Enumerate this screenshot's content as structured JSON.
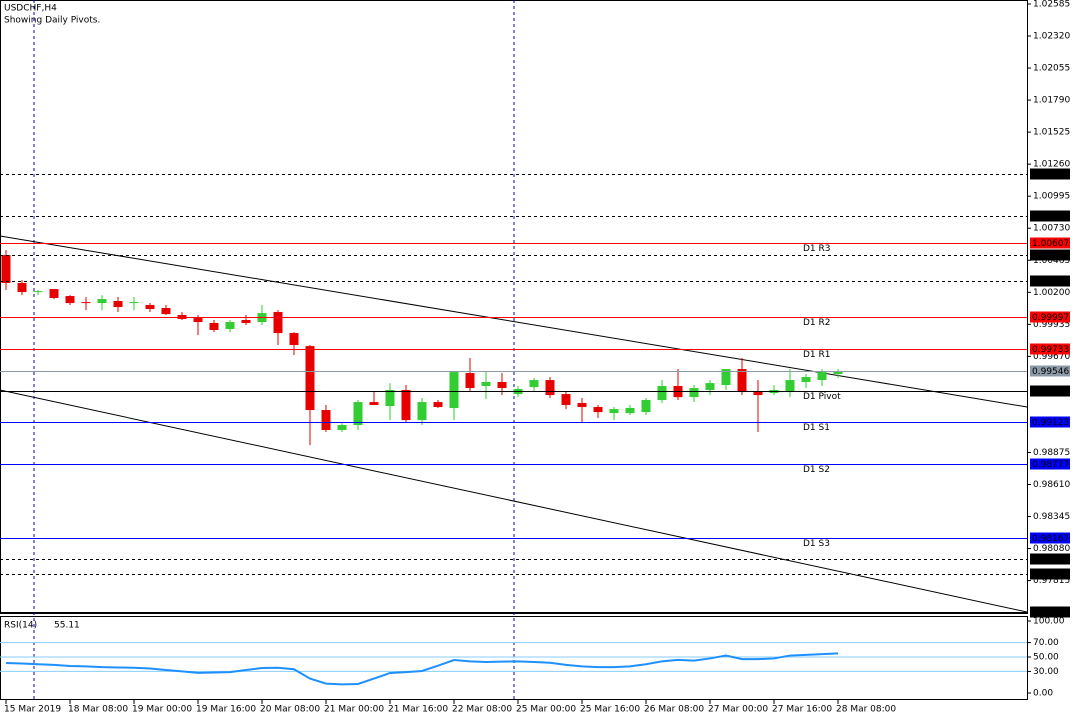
{
  "chart_data": {
    "type": "candlestick",
    "title": "USDCHF,H4",
    "subtitle": "Showing Daily Pivots.",
    "categories": [
      "15 Mar 2019",
      null,
      null,
      null,
      "18 Mar 08:00",
      null,
      null,
      null,
      "19 Mar 00:00",
      null,
      null,
      null,
      "19 Mar 16:00",
      null,
      null,
      null,
      "20 Mar 08:00",
      null,
      null,
      null,
      "21 Mar 00:00",
      null,
      null,
      null,
      "21 Mar 16:00",
      null,
      null,
      null,
      "22 Mar 08:00",
      null,
      null,
      null,
      "25 Mar 00:00",
      null,
      null,
      null,
      "25 Mar 16:00",
      null,
      null,
      null,
      "26 Mar 08:00",
      null,
      null,
      null,
      "27 Mar 00:00",
      null,
      null,
      null,
      "27 Mar 16:00",
      null,
      null,
      null,
      "28 Mar 08:00"
    ],
    "open": [
      1.00508,
      1.00277,
      1.00202,
      1.00227,
      1.00169,
      1.00119,
      1.00111,
      1.00128,
      1.00111,
      1.00095,
      1.0007,
      1.00012,
      0.99987,
      0.99946,
      0.99896,
      0.99971,
      0.99954,
      1.00037,
      0.99863,
      0.99755,
      0.99226,
      0.99061,
      0.99102,
      0.99292,
      0.99259,
      0.99392,
      0.99143,
      0.99292,
      0.99243,
      0.99532,
      0.99425,
      0.99458,
      0.99358,
      0.99416,
      0.99474,
      0.99358,
      0.99284,
      0.99251,
      0.99201,
      0.99201,
      0.99209,
      0.99309,
      0.99425,
      0.99333,
      0.99392,
      0.99433,
      0.99565,
      0.99375,
      0.99367,
      0.99375,
      0.99458,
      0.99474,
      0.99524
    ],
    "high": [
      1.0055,
      1.00301,
      1.00219,
      1.00227,
      1.00177,
      1.00161,
      1.00177,
      1.00161,
      1.00161,
      1.00111,
      1.00095,
      1.00037,
      1.00012,
      0.99971,
      0.99971,
      1.00012,
      1.00095,
      1.00053,
      0.99871,
      0.99764,
      0.99268,
      0.99127,
      0.99309,
      0.99375,
      0.99449,
      0.99433,
      0.99326,
      0.99309,
      0.9954,
      0.99656,
      0.9954,
      0.99532,
      0.99425,
      0.99491,
      0.99499,
      0.99375,
      0.99326,
      0.99268,
      0.99251,
      0.99268,
      0.99326,
      0.99474,
      0.99565,
      0.99433,
      0.99474,
      0.99565,
      0.99656,
      0.99474,
      0.99433,
      0.99565,
      0.99524,
      0.99565,
      0.99565
    ],
    "low": [
      1.00219,
      1.00177,
      1.00177,
      1.00144,
      1.00095,
      1.00053,
      1.00053,
      1.00037,
      1.00053,
      1.00037,
      1.00012,
      0.99971,
      0.99846,
      0.99871,
      0.99871,
      0.99929,
      0.99929,
      0.99764,
      0.99681,
      0.98936,
      0.99044,
      0.99044,
      0.99061,
      0.99268,
      0.99143,
      0.99127,
      0.99102,
      0.99243,
      0.99143,
      0.99375,
      0.99317,
      0.9935,
      0.99333,
      0.99375,
      0.99326,
      0.99234,
      0.99127,
      0.9916,
      0.99143,
      0.99185,
      0.99185,
      0.99284,
      0.99309,
      0.99292,
      0.9935,
      0.99392,
      0.9935,
      0.99044,
      0.9935,
      0.99333,
      0.99408,
      0.99425,
      0.99491
    ],
    "close": [
      1.00277,
      1.00202,
      1.0021,
      1.00153,
      1.00111,
      1.00111,
      1.00144,
      1.00078,
      1.00119,
      1.00062,
      1.0002,
      0.99979,
      0.99954,
      0.99888,
      0.99954,
      0.99946,
      1.00028,
      0.99863,
      0.99764,
      0.99226,
      0.99061,
      0.99102,
      0.99292,
      0.99268,
      0.99392,
      0.99143,
      0.99292,
      0.99251,
      0.9954,
      0.99408,
      0.99458,
      0.99408,
      0.994,
      0.99474,
      0.9935,
      0.99268,
      0.99251,
      0.99209,
      0.99234,
      0.99243,
      0.99309,
      0.99425,
      0.99333,
      0.99408,
      0.99449,
      0.99565,
      0.99375,
      0.9935,
      0.99392,
      0.99474,
      0.99499,
      0.9954,
      0.99546
    ],
    "up_color": "#32cd32",
    "down_color": "#e60000",
    "ylim": [
      0.97547,
      1.02618
    ],
    "yticks": [
      {
        "value": 1.02585,
        "label": "1.02585"
      },
      {
        "value": 1.0232,
        "label": "1.02320"
      },
      {
        "value": 1.02055,
        "label": "1.02055"
      },
      {
        "value": 1.0179,
        "label": "1.01790"
      },
      {
        "value": 1.01525,
        "label": "1.01525"
      },
      {
        "value": 1.0126,
        "label": "1.01260"
      },
      {
        "value": 1.00995,
        "label": "1.00995"
      },
      {
        "value": 1.0073,
        "label": "1.00730"
      },
      {
        "value": 1.00465,
        "label": "1.00465"
      },
      {
        "value": 1.002,
        "label": "1.00200"
      },
      {
        "value": 0.99935,
        "label": "0.99935"
      },
      {
        "value": 0.9967,
        "label": "0.99670"
      },
      {
        "value": 0.98875,
        "label": "0.98875"
      },
      {
        "value": 0.9861,
        "label": "0.98610"
      },
      {
        "value": 0.98345,
        "label": "0.98345"
      },
      {
        "value": 0.9808,
        "label": "0.98080"
      },
      {
        "value": 0.97815,
        "label": "0.97815"
      }
    ],
    "levels": [
      {
        "value": 1.01175,
        "color": "#000000",
        "style": "dashed"
      },
      {
        "value": 1.00834,
        "color": "#000000",
        "style": "dashed"
      },
      {
        "value": 1.00607,
        "color": "#ff0000",
        "style": "solid",
        "name": "D1 R3"
      },
      {
        "value": 1.00512,
        "color": "#000000",
        "style": "dashed"
      },
      {
        "value": 1.00297,
        "color": "#000000",
        "style": "dashed"
      },
      {
        "value": 0.99997,
        "color": "#ff0000",
        "style": "solid",
        "name": "D1 R2"
      },
      {
        "value": 0.99733,
        "color": "#ff0000",
        "style": "solid",
        "name": "D1 R1"
      },
      {
        "value": 0.99546,
        "color": "#8c9aa8",
        "style": "solid"
      },
      {
        "value": 0.99387,
        "color": "#000000",
        "style": "solid",
        "name": "D1 Pivot"
      },
      {
        "value": 0.99123,
        "color": "#0000ff",
        "style": "solid",
        "name": "D1 S1"
      },
      {
        "value": 0.98777,
        "color": "#0000ff",
        "style": "solid",
        "name": "D1 S2"
      },
      {
        "value": 0.98167,
        "color": "#0000ff",
        "style": "solid",
        "name": "D1 S3"
      },
      {
        "value": 0.97996,
        "color": "#000000",
        "style": "dashed"
      },
      {
        "value": 0.97868,
        "color": "#000000",
        "style": "dashed"
      },
      {
        "value": 0.97555,
        "color": "#000000",
        "style": "solid"
      }
    ],
    "rsi": {
      "title": "RSI(14)",
      "color": "#1e90ff",
      "level_color": "#87cefa",
      "values": [
        41.7,
        41,
        40,
        39,
        37.5,
        37,
        36,
        35.5,
        35,
        34,
        32,
        30,
        28,
        28.5,
        29,
        32,
        34.7,
        35,
        33,
        20,
        13,
        12,
        12.5,
        20,
        27.8,
        29,
        30.6,
        38,
        45.8,
        44,
        43,
        43.5,
        44,
        43,
        42,
        39,
        37,
        36,
        36,
        37,
        40,
        44,
        46,
        45,
        48,
        52,
        47,
        47,
        48,
        52,
        53,
        54,
        55.11
      ],
      "ylim": [
        0,
        100
      ],
      "yticks": [
        {
          "value": 100,
          "label": "100.00"
        },
        {
          "value": 70,
          "label": "70.00"
        },
        {
          "value": 50,
          "label": "50.00"
        },
        {
          "value": 30,
          "label": "30.00"
        },
        {
          "value": 0,
          "label": "0.00"
        }
      ]
    }
  }
}
